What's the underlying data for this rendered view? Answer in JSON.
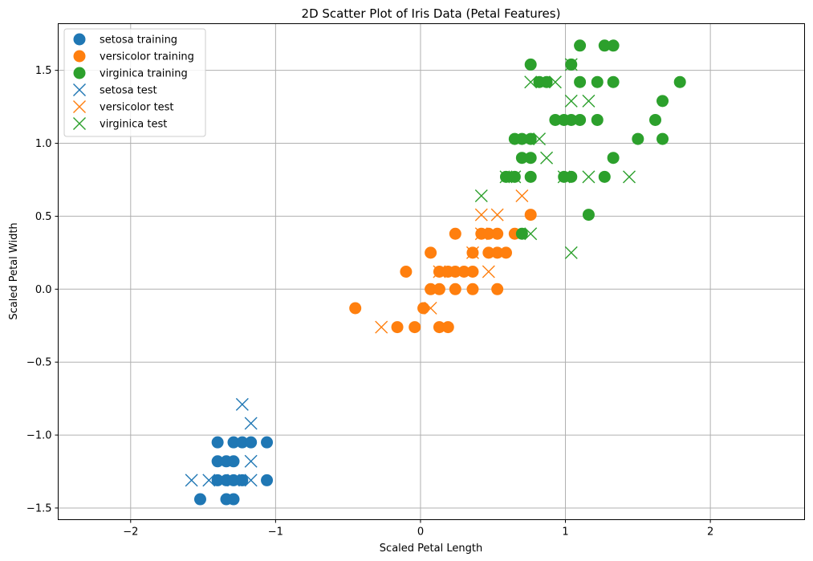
{
  "chart_data": {
    "type": "scatter",
    "title": "2D Scatter Plot of Iris Data (Petal Features)",
    "xlabel": "Scaled Petal Length",
    "ylabel": "Scaled Petal Width",
    "xlim": [
      -2.5,
      2.65
    ],
    "ylim": [
      -1.58,
      1.82
    ],
    "grid": true,
    "legend_position": "top-left",
    "xticks": [
      {
        "value": -2,
        "label": "−2"
      },
      {
        "value": -1,
        "label": "−1"
      },
      {
        "value": 0,
        "label": "0"
      },
      {
        "value": 1,
        "label": "1"
      },
      {
        "value": 2,
        "label": "2"
      }
    ],
    "yticks": [
      {
        "value": -1.5,
        "label": "−1.5"
      },
      {
        "value": -1.0,
        "label": "−1.0"
      },
      {
        "value": -0.5,
        "label": "−0.5"
      },
      {
        "value": 0.0,
        "label": "0.0"
      },
      {
        "value": 0.5,
        "label": "0.5"
      },
      {
        "value": 1.0,
        "label": "1.0"
      },
      {
        "value": 1.5,
        "label": "1.5"
      }
    ],
    "series": [
      {
        "name": "setosa training",
        "marker": "circle",
        "color": "#1f77b4",
        "points": [
          [
            -1.52,
            -1.44
          ],
          [
            -1.4,
            -1.31
          ],
          [
            -1.4,
            -1.18
          ],
          [
            -1.4,
            -1.05
          ],
          [
            -1.34,
            -1.44
          ],
          [
            -1.34,
            -1.31
          ],
          [
            -1.34,
            -1.18
          ],
          [
            -1.29,
            -1.44
          ],
          [
            -1.29,
            -1.31
          ],
          [
            -1.29,
            -1.18
          ],
          [
            -1.29,
            -1.05
          ],
          [
            -1.23,
            -1.31
          ],
          [
            -1.23,
            -1.05
          ],
          [
            -1.17,
            -1.05
          ],
          [
            -1.06,
            -1.31
          ],
          [
            -1.06,
            -1.05
          ]
        ]
      },
      {
        "name": "versicolor training",
        "marker": "circle",
        "color": "#ff7f0e",
        "points": [
          [
            -0.45,
            -0.13
          ],
          [
            -0.16,
            -0.26
          ],
          [
            -0.1,
            0.12
          ],
          [
            -0.04,
            -0.26
          ],
          [
            0.02,
            -0.13
          ],
          [
            0.07,
            0.0
          ],
          [
            0.07,
            0.25
          ],
          [
            0.13,
            -0.26
          ],
          [
            0.13,
            0.0
          ],
          [
            0.13,
            0.12
          ],
          [
            0.19,
            -0.26
          ],
          [
            0.19,
            0.12
          ],
          [
            0.24,
            0.0
          ],
          [
            0.24,
            0.12
          ],
          [
            0.24,
            0.38
          ],
          [
            0.3,
            0.12
          ],
          [
            0.36,
            0.0
          ],
          [
            0.36,
            0.12
          ],
          [
            0.36,
            0.25
          ],
          [
            0.42,
            0.38
          ],
          [
            0.47,
            0.25
          ],
          [
            0.47,
            0.38
          ],
          [
            0.53,
            0.0
          ],
          [
            0.53,
            0.25
          ],
          [
            0.53,
            0.38
          ],
          [
            0.59,
            0.25
          ],
          [
            0.65,
            0.38
          ],
          [
            0.76,
            0.51
          ]
        ]
      },
      {
        "name": "virginica training",
        "marker": "circle",
        "color": "#2ca02c",
        "points": [
          [
            0.59,
            0.77
          ],
          [
            0.65,
            0.77
          ],
          [
            0.65,
            1.03
          ],
          [
            0.7,
            0.38
          ],
          [
            0.7,
            0.9
          ],
          [
            0.7,
            1.03
          ],
          [
            0.76,
            0.77
          ],
          [
            0.76,
            0.9
          ],
          [
            0.76,
            1.03
          ],
          [
            0.76,
            1.54
          ],
          [
            0.82,
            1.42
          ],
          [
            0.87,
            1.42
          ],
          [
            0.93,
            1.16
          ],
          [
            0.99,
            0.77
          ],
          [
            0.99,
            1.16
          ],
          [
            1.04,
            0.77
          ],
          [
            1.04,
            1.16
          ],
          [
            1.04,
            1.54
          ],
          [
            1.1,
            1.16
          ],
          [
            1.1,
            1.42
          ],
          [
            1.1,
            1.67
          ],
          [
            1.16,
            0.51
          ],
          [
            1.22,
            1.16
          ],
          [
            1.22,
            1.42
          ],
          [
            1.27,
            0.77
          ],
          [
            1.27,
            1.67
          ],
          [
            1.33,
            0.9
          ],
          [
            1.33,
            1.42
          ],
          [
            1.33,
            1.67
          ],
          [
            1.5,
            1.03
          ],
          [
            1.62,
            1.16
          ],
          [
            1.67,
            1.03
          ],
          [
            1.67,
            1.29
          ],
          [
            1.79,
            1.42
          ]
        ]
      },
      {
        "name": "setosa test",
        "marker": "x",
        "color": "#1f77b4",
        "points": [
          [
            -1.58,
            -1.31
          ],
          [
            -1.46,
            -1.31
          ],
          [
            -1.23,
            -0.79
          ],
          [
            -1.17,
            -0.92
          ],
          [
            -1.17,
            -1.18
          ],
          [
            -1.17,
            -1.31
          ],
          [
            -1.29,
            -1.31
          ]
        ]
      },
      {
        "name": "versicolor test",
        "marker": "x",
        "color": "#ff7f0e",
        "points": [
          [
            -0.27,
            -0.26
          ],
          [
            0.07,
            -0.13
          ],
          [
            0.13,
            0.12
          ],
          [
            0.36,
            0.25
          ],
          [
            0.42,
            0.38
          ],
          [
            0.42,
            0.51
          ],
          [
            0.47,
            0.12
          ],
          [
            0.53,
            0.51
          ],
          [
            0.7,
            0.64
          ]
        ]
      },
      {
        "name": "virginica test",
        "marker": "x",
        "color": "#2ca02c",
        "points": [
          [
            0.42,
            0.64
          ],
          [
            0.59,
            0.77
          ],
          [
            0.65,
            0.77
          ],
          [
            0.76,
            1.42
          ],
          [
            0.76,
            0.38
          ],
          [
            0.82,
            1.03
          ],
          [
            0.87,
            0.9
          ],
          [
            0.93,
            1.42
          ],
          [
            0.99,
            0.77
          ],
          [
            1.04,
            1.29
          ],
          [
            1.04,
            0.25
          ],
          [
            1.04,
            1.54
          ],
          [
            1.16,
            1.29
          ],
          [
            1.16,
            0.77
          ],
          [
            1.44,
            0.77
          ]
        ]
      }
    ]
  }
}
